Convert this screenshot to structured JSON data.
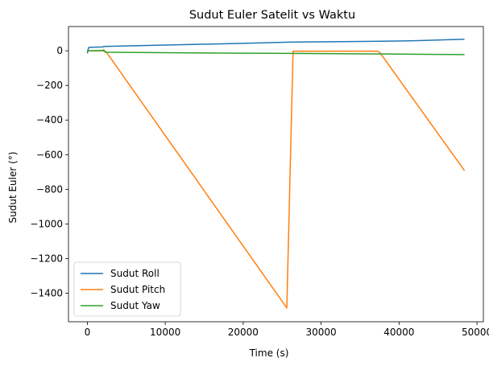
{
  "chart_data": {
    "type": "line",
    "title": "Sudut Euler Satelit vs Waktu",
    "xlabel": "Time (s)",
    "ylabel": "Sudut Euler (°)",
    "xlim": [
      -2420,
      50820
    ],
    "ylim": [
      -1565,
      140
    ],
    "xticks": [
      0,
      10000,
      20000,
      30000,
      40000,
      50000
    ],
    "xtick_labels": [
      "0",
      "10000",
      "20000",
      "30000",
      "40000",
      "50000"
    ],
    "yticks": [
      0,
      -200,
      -400,
      -600,
      -800,
      -1000,
      -1200,
      -1400
    ],
    "ytick_labels": [
      "0",
      "−200",
      "−400",
      "−600",
      "−800",
      "−1000",
      "−1200",
      "−1400"
    ],
    "grid": false,
    "legend_position": "lower-left",
    "series": [
      {
        "name": "Sudut Roll",
        "color": "#1f77b4",
        "x": [
          0,
          80,
          200,
          2000,
          2100,
          10000,
          20000,
          26000,
          30000,
          38000,
          42000,
          45000,
          48400
        ],
        "y": [
          -15,
          5,
          20,
          22,
          25,
          33,
          43,
          50,
          52,
          55,
          58,
          62,
          67
        ]
      },
      {
        "name": "Sudut Pitch",
        "color": "#ff7f0e",
        "x": [
          0,
          150,
          2000,
          2400,
          25600,
          26400,
          37200,
          37500,
          48400
        ],
        "y": [
          0,
          0,
          0,
          -5,
          -1485,
          -2,
          -2,
          -8,
          -692
        ]
      },
      {
        "name": "Sudut Yaw",
        "color": "#2ca02c",
        "x": [
          0,
          100,
          2000,
          2100,
          2300,
          10000,
          20000,
          30000,
          40000,
          48400
        ],
        "y": [
          -3,
          0,
          2,
          5,
          -8,
          -11,
          -14,
          -16,
          -19,
          -22
        ]
      }
    ]
  }
}
